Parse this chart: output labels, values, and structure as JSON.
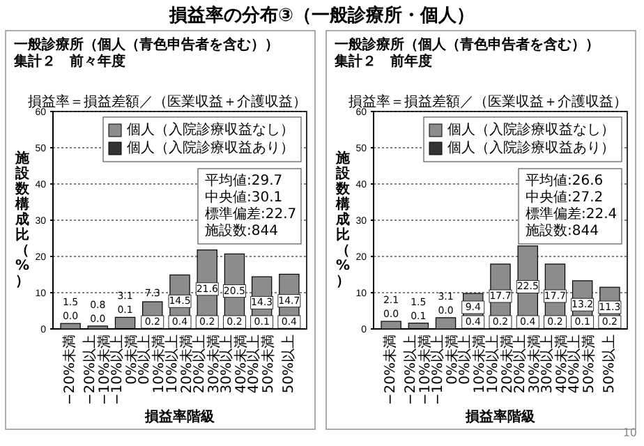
{
  "chart_data": [
    {
      "type": "bar",
      "title": "損益率の分布③（一般診療所・個人）",
      "subtitle": "一般診療所（個人（青色申告者を含む））集計２　前々年度",
      "xlabel": "損益率階級",
      "ylabel": "施設数構成比（%）",
      "stacked": true,
      "grid": "y",
      "legend": "top right",
      "ylim": [
        0,
        60
      ],
      "yticks": [
        0,
        10,
        20,
        30,
        40,
        50,
        60
      ],
      "categories": [
        "−20%未満",
        "−20%以上\n−10%未満",
        "−10%以上\n0%未満",
        "0%以上\n10%未満",
        "10%以上\n20%未満",
        "20%以上\n30%未満",
        "30%以上\n40%未満",
        "40%以上\n50%未満",
        "50%以上"
      ],
      "series": [
        {
          "name": "個人（入院診療収益あり）",
          "color": "#333333",
          "values": [
            0,
            0,
            0.1,
            0.2,
            0.4,
            0.2,
            0.2,
            0.1,
            0.4
          ],
          "value_labels": [
            "0.0",
            "0.0",
            "0.1",
            "0.2",
            "0.4",
            "0.2",
            "0.2",
            "0.1",
            "0.4"
          ]
        },
        {
          "name": "個人（入院診療収益なし）",
          "color": "#8c8c8c",
          "values": [
            1.5,
            0.8,
            3.1,
            7.3,
            14.5,
            21.6,
            20.5,
            14.3,
            14.7
          ],
          "value_labels": [
            "1.5",
            "0.8",
            "3.1",
            "7.3",
            "14.5",
            "21.6",
            "20.5",
            "14.3",
            "14.7"
          ]
        }
      ],
      "annotations": [
        "損益率＝損益差額／（医業収益＋介護収益）",
        "平均値:29.7",
        "中央値:30.1",
        "標準偏差:22.7",
        "施設数:844"
      ]
    },
    {
      "type": "bar",
      "subtitle": "一般診療所（個人（青色申告者を含む））集計２　前年度",
      "xlabel": "損益率階級",
      "ylabel": "施設数構成比（%）",
      "stacked": true,
      "grid": "y",
      "legend": "top right",
      "ylim": [
        0,
        60
      ],
      "yticks": [
        0,
        10,
        20,
        30,
        40,
        50,
        60
      ],
      "categories": [
        "−20%未満",
        "−20%以上\n−10%未満",
        "−10%以上\n0%未満",
        "0%以上\n10%未満",
        "10%以上\n20%未満",
        "20%以上\n30%未満",
        "30%以上\n40%未満",
        "40%以上\n50%未満",
        "50%以上"
      ],
      "series": [
        {
          "name": "個人（入院診療収益あり）",
          "color": "#333333",
          "values": [
            0,
            0.1,
            0,
            0.4,
            0.2,
            0.4,
            0.2,
            0.1,
            0.2
          ],
          "value_labels": [
            "0.0",
            "0.1",
            "0.0",
            "0.4",
            "0.2",
            "0.4",
            "0.2",
            "0.1",
            "0.2"
          ]
        },
        {
          "name": "個人（入院診療収益なし）",
          "color": "#8c8c8c",
          "values": [
            2.1,
            1.5,
            3.1,
            9.4,
            17.7,
            22.5,
            17.7,
            13.2,
            11.3
          ],
          "value_labels": [
            "2.1",
            "1.5",
            "3.1",
            "9.4",
            "17.7",
            "22.5",
            "17.7",
            "13.2",
            "11.3"
          ]
        }
      ],
      "annotations": [
        "損益率＝損益差額／（医業収益＋介護収益）",
        "平均値:26.6",
        "中央値:27.2",
        "標準偏差:22.4",
        "施設数:844",
        "10"
      ]
    }
  ]
}
